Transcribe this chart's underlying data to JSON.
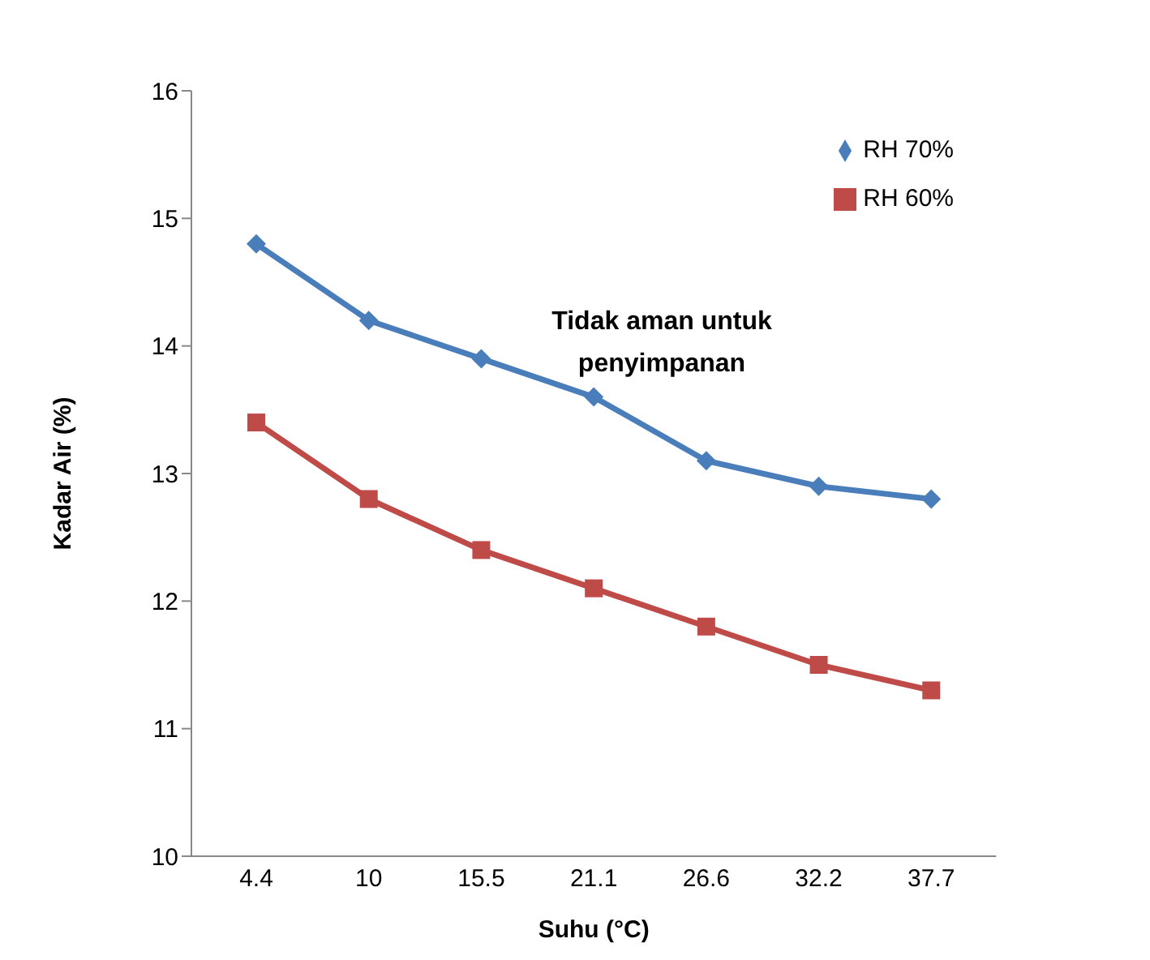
{
  "chart_data": {
    "type": "line",
    "xlabel": "Suhu (°C)",
    "ylabel": "Kadar Air (%)",
    "categories": [
      "4.4",
      "10",
      "15.5",
      "21.1",
      "26.6",
      "32.2",
      "37.7"
    ],
    "series": [
      {
        "name": "RH 70%",
        "color": "#4a7ebb",
        "marker": "diamond",
        "values": [
          14.8,
          14.2,
          13.9,
          13.6,
          13.1,
          12.9,
          12.8
        ]
      },
      {
        "name": "RH 60%",
        "color": "#be4b48",
        "marker": "square",
        "values": [
          13.4,
          12.8,
          12.4,
          12.1,
          11.8,
          11.5,
          11.3
        ]
      }
    ],
    "ylim": [
      10,
      16
    ],
    "yticks": [
      10,
      11,
      12,
      13,
      14,
      15,
      16
    ],
    "legend": "top right",
    "annotations": [
      "Tidak aman untuk penyimpanan"
    ]
  }
}
